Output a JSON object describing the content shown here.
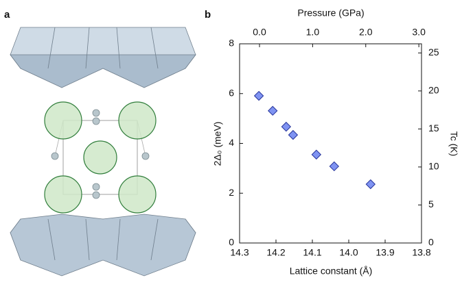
{
  "panel_labels": [
    "a",
    "b"
  ],
  "chart_data": {
    "type": "scatter",
    "xlabel": "Lattice constant (Å)",
    "x2label": "Pressure (GPa)",
    "ylabel": "2Δ₀ (meV)",
    "y2label": "Tc (K)",
    "xlim": [
      14.3,
      13.8
    ],
    "xticks": [
      {
        "value": 14.3,
        "label": "14.3"
      },
      {
        "value": 14.2,
        "label": "14.2"
      },
      {
        "value": 14.1,
        "label": "14.1"
      },
      {
        "value": 14,
        "label": "14.0"
      },
      {
        "value": 13.9,
        "label": "13.9"
      },
      {
        "value": 13.8,
        "label": "13.8"
      }
    ],
    "x2lim": [
      -0.375,
      3.05
    ],
    "x2ticks": [
      {
        "value": 0,
        "label": "0.0"
      },
      {
        "value": 1,
        "label": "1.0"
      },
      {
        "value": 2,
        "label": "2.0"
      },
      {
        "value": 3,
        "label": "3.0"
      }
    ],
    "ylim": [
      0,
      8
    ],
    "yticks": [
      0,
      2,
      4,
      6,
      8
    ],
    "y2lim": [
      0,
      26.2
    ],
    "y2ticks": [
      0,
      5,
      10,
      15,
      20,
      25
    ],
    "x": [
      14.247,
      14.209,
      14.172,
      14.153,
      14.089,
      14.04,
      13.94
    ],
    "values": [
      5.91,
      5.31,
      4.67,
      4.34,
      3.55,
      3.08,
      2.36
    ],
    "color": "#7f93f2",
    "edge_color": "#26349a"
  }
}
